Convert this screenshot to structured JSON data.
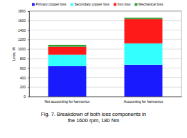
{
  "chart_data": {
    "type": "bar",
    "stacked": true,
    "title": "Fig. 7. Breakdown of both loss components in the 1600 rpm, 180 Nm",
    "y_label": "Loss, W",
    "categories": [
      "Not accounting for harmonics",
      "Accounting for harmonics"
    ],
    "series": [
      {
        "name": "Primary copper loss",
        "color": "#1a1aff",
        "values": [
          640,
          670
        ]
      },
      {
        "name": "Secondary copper loss",
        "color": "#33ffff",
        "values": [
          240,
          450
        ]
      },
      {
        "name": "Iron loss",
        "color": "#ff1a1a",
        "values": [
          170,
          510
        ]
      },
      {
        "name": "Mechanical loss",
        "color": "#33a033",
        "values": [
          40,
          30
        ]
      }
    ],
    "ylim": [
      0,
      1800
    ],
    "yticks": [
      0,
      200,
      400,
      600,
      800,
      1000,
      1200,
      1400,
      1600,
      1800
    ],
    "grid": true,
    "legend": "top"
  }
}
